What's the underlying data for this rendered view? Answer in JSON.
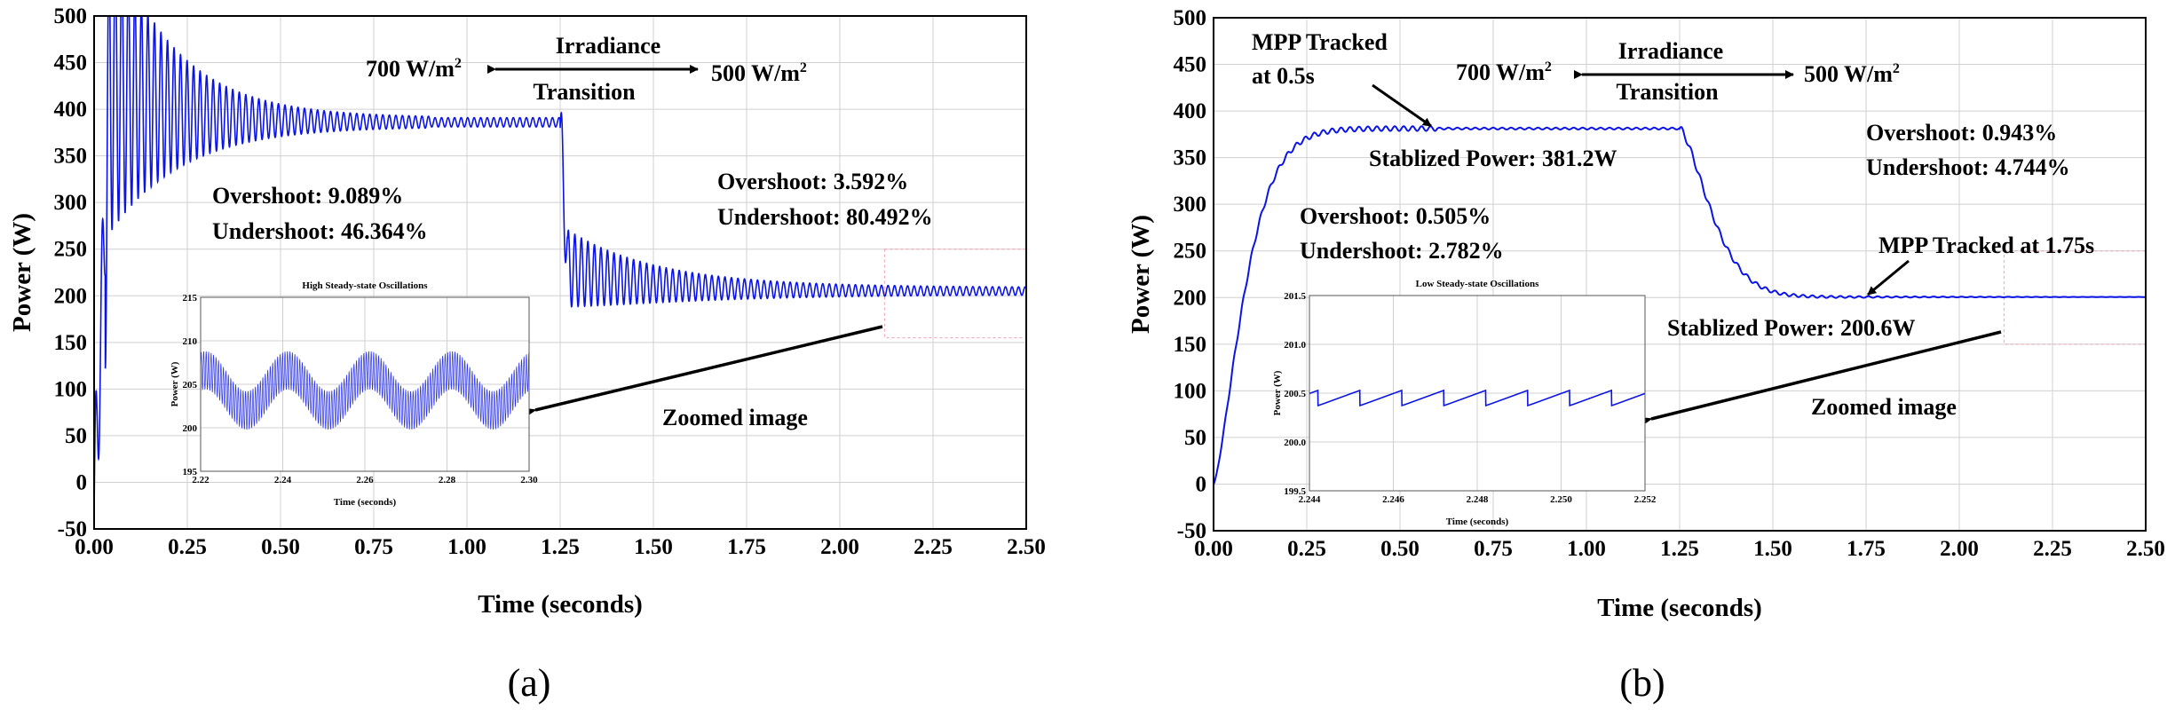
{
  "colors": {
    "series": "#0a14e6",
    "grid": "#d0d0d0",
    "axis": "#000000",
    "arrow": "#000000"
  },
  "chart_data": [
    {
      "type": "line",
      "panel_label": "(a)",
      "xlabel": "Time (seconds)",
      "ylabel": "Power (W)",
      "xlim": [
        0,
        2.5
      ],
      "ylim": [
        -50,
        500
      ],
      "xticks": [
        "0.00",
        "0.25",
        "0.50",
        "0.75",
        "1.00",
        "1.25",
        "1.50",
        "1.75",
        "2.00",
        "2.25",
        "2.50"
      ],
      "yticks": [
        "-50",
        "0",
        "50",
        "100",
        "150",
        "200",
        "250",
        "300",
        "350",
        "400",
        "450",
        "500"
      ],
      "grid": true,
      "series": [
        {
          "model": "oscillating_step",
          "segments": [
            {
              "t0": 0.0,
              "t1": 1.25,
              "steady": 386,
              "amp0": 200,
              "decay": 0.18,
              "period": 0.0175,
              "rise": 0.04,
              "start": -35,
              "floor_amp": 5
            },
            {
              "t0": 1.25,
              "t1": 2.5,
              "steady": 205,
              "amp0": 40,
              "decay": 0.28,
              "period": 0.0175,
              "floor_amp": 4
            }
          ]
        }
      ],
      "annotations": {
        "irr_left": "700 W/m",
        "irr_left_sup": "2",
        "irr_mid_top": "Irradiance",
        "irr_mid_bottom": "Transition",
        "irr_right": "500 W/m",
        "irr_right_sup": "2",
        "over1": "Overshoot: 9.089%",
        "under1": "Undershoot: 46.364%",
        "over2": "Overshoot: 3.592%",
        "under2": "Undershoot: 80.492%",
        "zoomed": "Zoomed image"
      },
      "inset": {
        "title": "High Steady-state Oscillations",
        "xlabel": "Time (seconds)",
        "ylabel": "Power (W)",
        "xlim": [
          2.22,
          2.3
        ],
        "ylim": [
          195,
          215
        ],
        "xticks": [
          "2.22",
          "2.24",
          "2.26",
          "2.28",
          "2.30"
        ],
        "yticks": [
          "195",
          "200",
          "205",
          "210",
          "215"
        ],
        "signal": {
          "center": 204.3,
          "envelope_amp": 2.3,
          "envelope_period": 0.02,
          "fast_amp": 2.2,
          "fast_period": 0.0006
        }
      }
    },
    {
      "type": "line",
      "panel_label": "(b)",
      "xlabel": "Time (seconds)",
      "ylabel": "Power (W)",
      "xlim": [
        0,
        2.5
      ],
      "ylim": [
        -50,
        500
      ],
      "xticks": [
        "0.00",
        "0.25",
        "0.50",
        "0.75",
        "1.00",
        "1.25",
        "1.50",
        "1.75",
        "2.00",
        "2.25",
        "2.50"
      ],
      "yticks": [
        "-50",
        "0",
        "50",
        "100",
        "150",
        "200",
        "250",
        "300",
        "350",
        "400",
        "450",
        "500"
      ],
      "grid": true,
      "series": [
        {
          "model": "smooth_step",
          "segments": [
            {
              "t0": 0.0,
              "t1": 1.25,
              "steady": 381.2,
              "tau": 0.1,
              "ripple": 2.5,
              "ripple_period": 0.024
            },
            {
              "t0": 1.25,
              "t1": 2.5,
              "steady": 200.6,
              "tau": 0.11,
              "ripple": 3.5,
              "ripple_period": 0.025
            }
          ]
        }
      ],
      "annotations": {
        "mpp1_line1": "MPP Tracked",
        "mpp1_line2": "at 0.5s",
        "irr_left": "700 W/m",
        "irr_left_sup": "2",
        "irr_mid_top": "Irradiance",
        "irr_mid_bottom": "Transition",
        "irr_right": "500 W/m",
        "irr_right_sup": "2",
        "stab1": "Stablized Power: 381.2W",
        "over1": "Overshoot: 0.505%",
        "under1": "Undershoot: 2.782%",
        "over2": "Overshoot: 0.943%",
        "under2": "Undershoot: 4.744%",
        "mpp2": "MPP Tracked at 1.75s",
        "stab2": "Stablized Power: 200.6W",
        "zoomed": "Zoomed image"
      },
      "inset": {
        "title": "Low Steady-state Oscillations",
        "xlabel": "Time (seconds)",
        "ylabel": "Power (W)",
        "xlim": [
          2.244,
          2.252
        ],
        "ylim": [
          199.5,
          201.5
        ],
        "xticks": [
          "2.244",
          "2.246",
          "2.248",
          "2.250",
          "2.252"
        ],
        "yticks": [
          "199.5",
          "200.0",
          "200.5",
          "201.0",
          "201.5"
        ],
        "signal": {
          "base": 200.42,
          "jump": 0.12,
          "period": 0.001,
          "start": 2.244
        }
      }
    }
  ]
}
